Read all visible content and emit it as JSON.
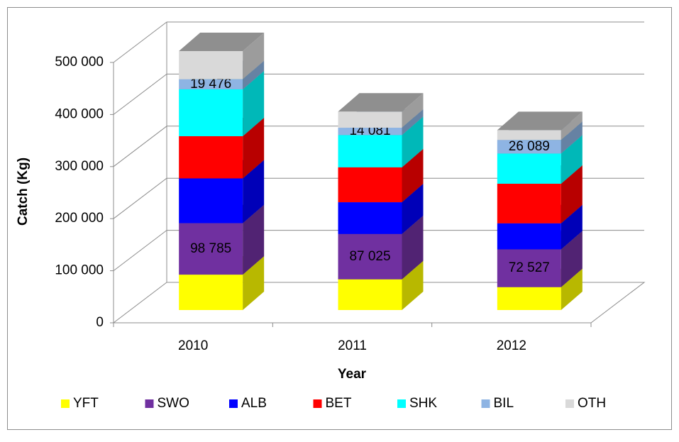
{
  "chart_data": {
    "type": "bar3d_stacked",
    "x_label": "Year",
    "y_label": "Catch (Kg)",
    "categories": [
      "2010",
      "2011",
      "2012"
    ],
    "series": [
      {
        "name": "YFT",
        "color": "#ffff00",
        "values": [
          68000,
          59000,
          44000
        ]
      },
      {
        "name": "SWO",
        "color": "#7030a0",
        "values": [
          98785,
          87025,
          72527
        ],
        "value_labels": [
          "98 785",
          "87 025",
          "72 527"
        ]
      },
      {
        "name": "ALB",
        "color": "#0000ff",
        "values": [
          86000,
          61000,
          50000
        ]
      },
      {
        "name": "BET",
        "color": "#ff0000",
        "values": [
          81000,
          67000,
          76000
        ]
      },
      {
        "name": "SHK",
        "color": "#00ffff",
        "values": [
          90000,
          62000,
          58000
        ]
      },
      {
        "name": "BIL",
        "color": "#8eb4e3",
        "values": [
          19476,
          14081,
          26089
        ],
        "value_labels": [
          "19 476",
          "14 081",
          "26 089"
        ]
      },
      {
        "name": "OTH",
        "color": "#d9d9d9",
        "values": [
          54000,
          31000,
          19000
        ]
      }
    ],
    "ylim": [
      0,
      500000
    ],
    "yticks": [
      0,
      {
        "value": 100000,
        "label": "100 000"
      },
      {
        "value": 200000,
        "label": "200 000"
      },
      {
        "value": 300000,
        "label": "300 000"
      },
      {
        "value": 400000,
        "label": "400 000"
      },
      {
        "value": 500000,
        "label": "500 000"
      }
    ],
    "grid": true,
    "legend": "bottom"
  }
}
